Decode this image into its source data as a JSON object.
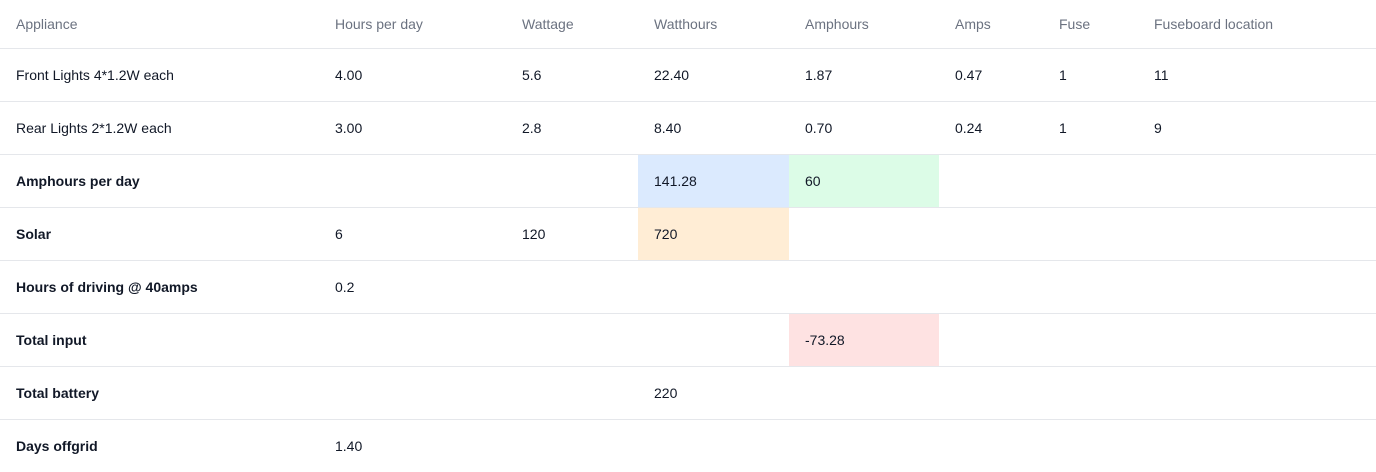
{
  "table": {
    "headers": [
      "Appliance",
      "Hours per day",
      "Wattage",
      "Watthours",
      "Amphours",
      "Amps",
      "Fuse",
      "Fuseboard location"
    ],
    "rows": [
      {
        "cells": [
          "Front Lights 4*1.2W each",
          "4.00",
          "5.6",
          "22.40",
          "1.87",
          "0.47",
          "1",
          "11"
        ]
      },
      {
        "cells": [
          "Rear Lights 2*1.2W each",
          "3.00",
          "2.8",
          "8.40",
          "0.70",
          "0.24",
          "1",
          "9"
        ]
      },
      {
        "cells": [
          "Amphours per day",
          "",
          "",
          "141.28",
          "60",
          "",
          "",
          ""
        ]
      },
      {
        "cells": [
          "Solar",
          "6",
          "120",
          "720",
          "",
          "",
          "",
          ""
        ]
      },
      {
        "cells": [
          "Hours of driving @ 40amps",
          "0.2",
          "",
          "",
          "",
          "",
          "",
          ""
        ]
      },
      {
        "cells": [
          "Total input",
          "",
          "",
          "",
          "-73.28",
          "",
          "",
          ""
        ]
      },
      {
        "cells": [
          "Total battery",
          "",
          "",
          "220",
          "",
          "",
          "",
          ""
        ]
      },
      {
        "cells": [
          "Days offgrid",
          "1.40",
          "",
          "",
          "",
          "",
          "",
          ""
        ]
      }
    ]
  },
  "colors": {
    "highlight_blue": "#dbeafe",
    "highlight_green": "#dcfce7",
    "highlight_orange": "#ffedd5",
    "highlight_red": "#fee2e2",
    "header_text": "#6b7280",
    "border": "#e5e7eb"
  }
}
